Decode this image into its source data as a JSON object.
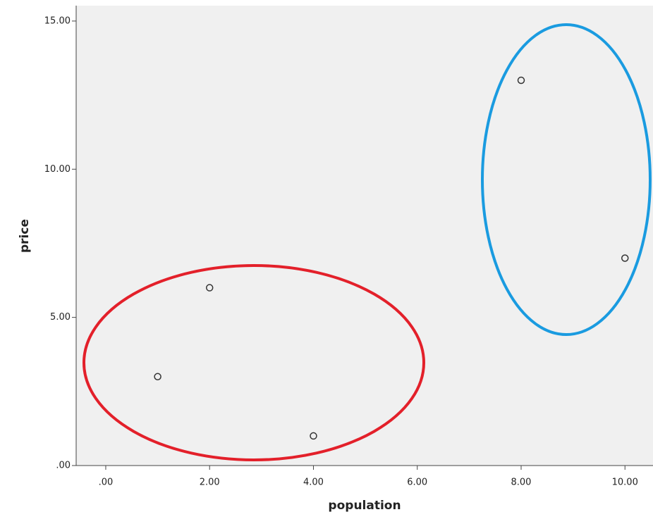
{
  "chart_data": {
    "type": "scatter",
    "x_label": "population",
    "y_label": "price",
    "x": [
      1,
      2,
      4,
      8,
      10
    ],
    "values": [
      3,
      6,
      1,
      13,
      7
    ],
    "color": "#333333",
    "xlim": [
      -0.57,
      10.54
    ],
    "ylim": [
      0,
      15.52
    ],
    "xticks": [
      {
        "value": 0,
        "label": ".00"
      },
      {
        "value": 2,
        "label": "2.00"
      },
      {
        "value": 4,
        "label": "4.00"
      },
      {
        "value": 6,
        "label": "6.00"
      },
      {
        "value": 8,
        "label": "8.00"
      },
      {
        "value": 10,
        "label": "10.00"
      }
    ],
    "yticks": [
      {
        "value": 0,
        "label": ".00"
      },
      {
        "value": 5,
        "label": "5.00"
      },
      {
        "value": 10,
        "label": "10.00"
      },
      {
        "value": 15,
        "label": "15.00"
      }
    ],
    "grid": false
  }
}
